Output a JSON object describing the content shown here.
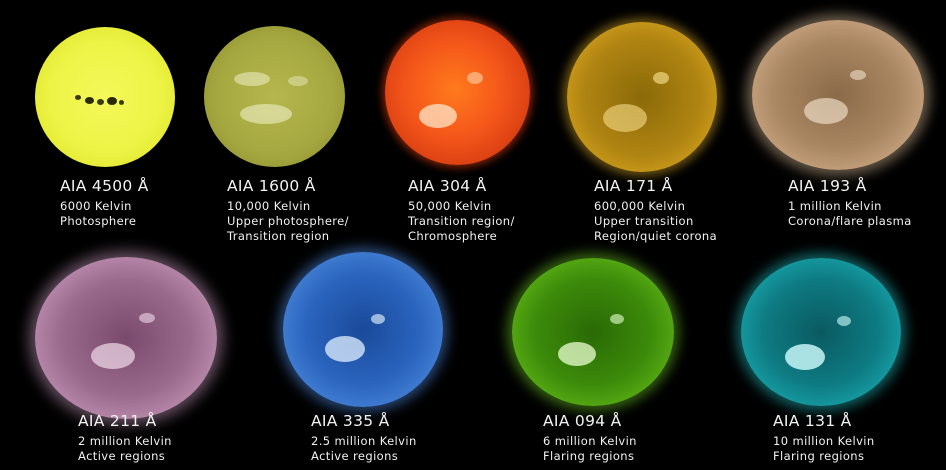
{
  "panels": [
    {
      "title": "AIA 4500 Å",
      "line1": "6000 Kelvin",
      "line2": "Photosphere",
      "line3": "",
      "color": "#eef446"
    },
    {
      "title": "AIA 1600 Å",
      "line1": "10,000 Kelvin",
      "line2": "Upper photosphere/",
      "line3": "Transition region",
      "color": "#a4a63f"
    },
    {
      "title": "AIA 304 Å",
      "line1": "50,000 Kelvin",
      "line2": "Transition region/",
      "line3": "Chromosphere",
      "color": "#f4561a"
    },
    {
      "title": "AIA 171 Å",
      "line1": "600,000 Kelvin",
      "line2": "Upper transition",
      "line3": "Region/quiet corona",
      "color": "#b08412"
    },
    {
      "title": "AIA 193 Å",
      "line1": "1 million Kelvin",
      "line2": "Corona/flare plasma",
      "line3": "",
      "color": "#a98662"
    },
    {
      "title": "AIA 211 Å",
      "line1": "2 million Kelvin",
      "line2": "Active regions",
      "line3": "",
      "color": "#9a6a8c"
    },
    {
      "title": "AIA 335 Å",
      "line1": "2.5 million Kelvin",
      "line2": "Active regions",
      "line3": "",
      "color": "#2a64be"
    },
    {
      "title": "AIA 094 Å",
      "line1": "6 million Kelvin",
      "line2": "Flaring regions",
      "line3": "",
      "color": "#3c8a0a"
    },
    {
      "title": "AIA 131 Å",
      "line1": "10 million Kelvin",
      "line2": "Flaring regions",
      "line3": "",
      "color": "#0e7a82"
    }
  ]
}
